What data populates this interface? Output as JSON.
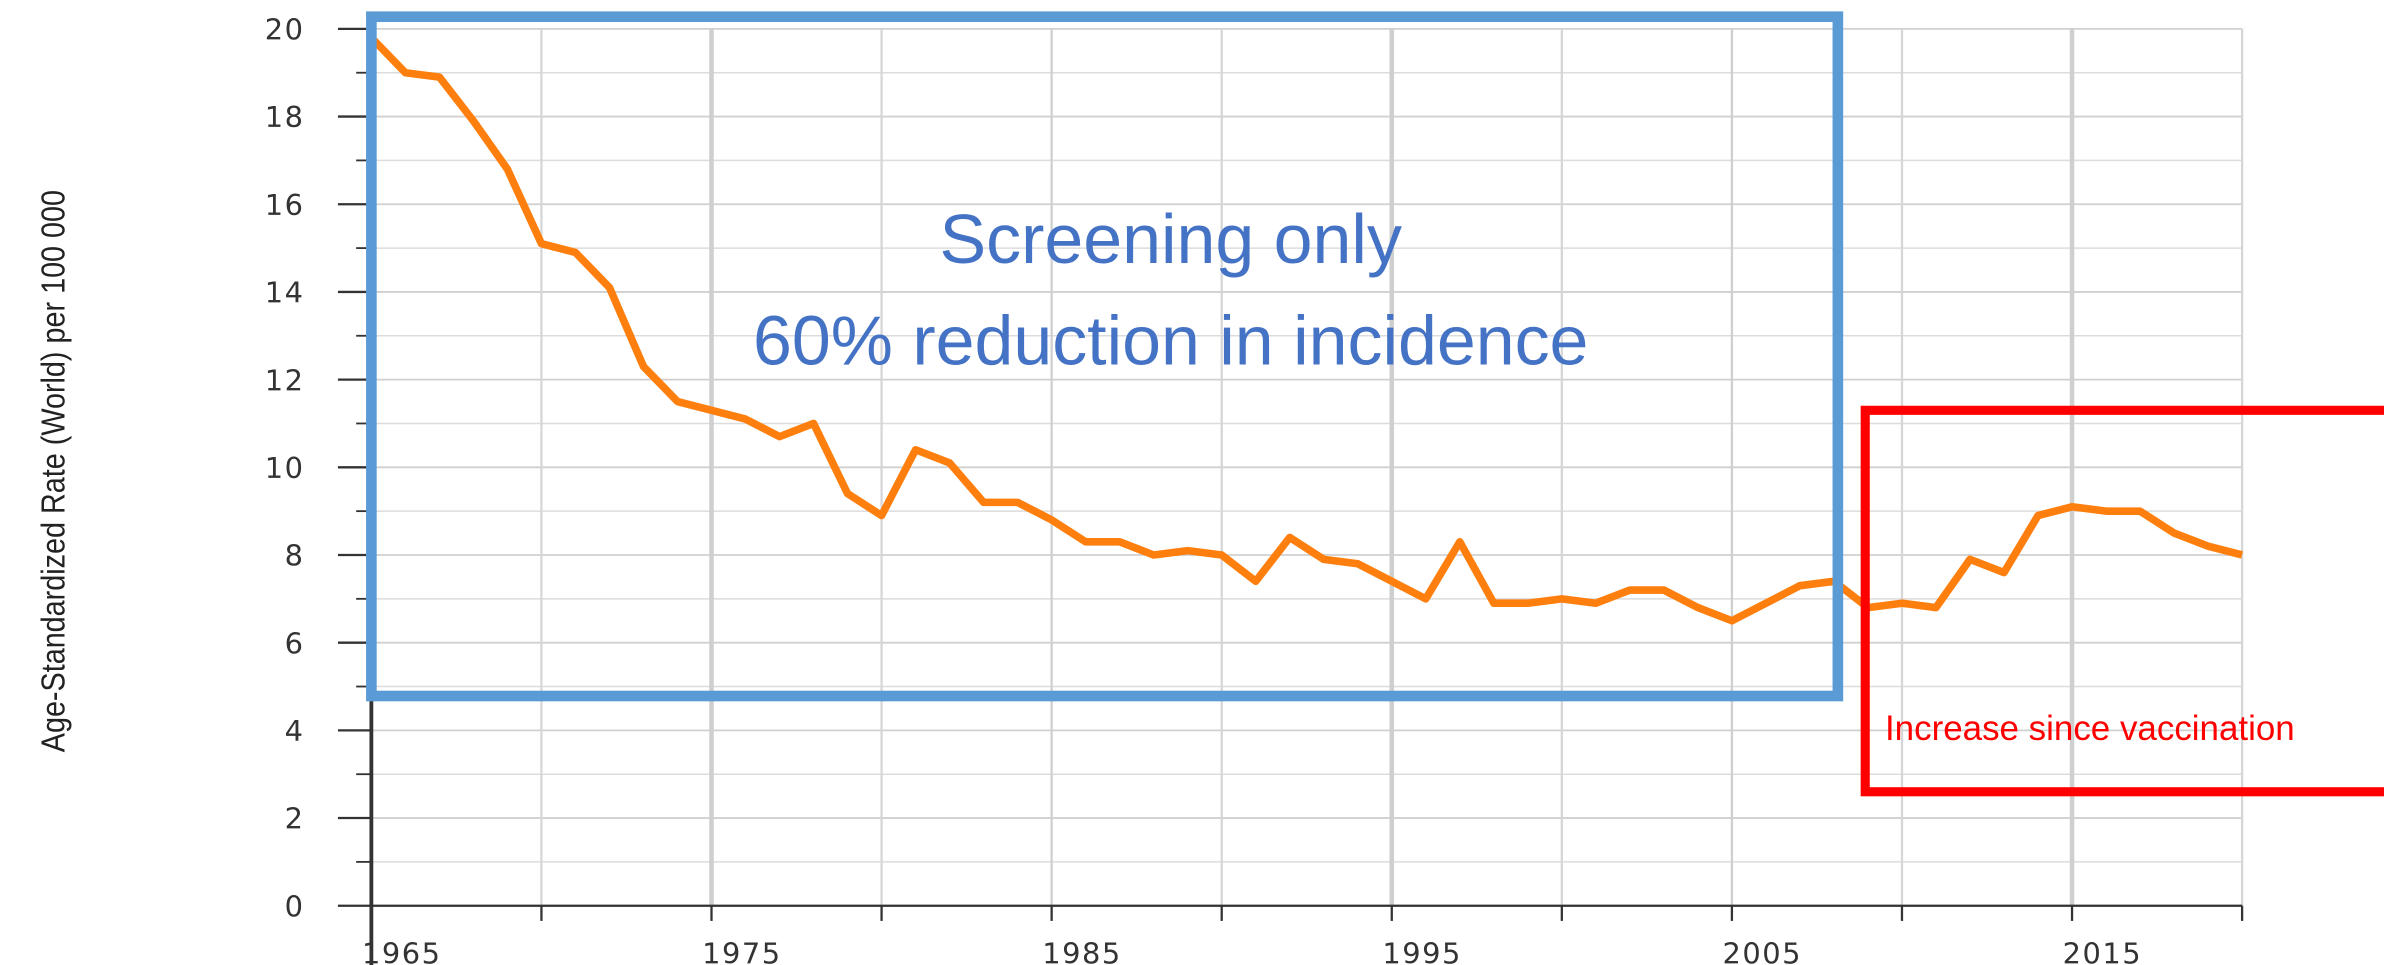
{
  "chart_data": {
    "type": "line",
    "y_label": "Age-Standardized Rate (World) per 100 000",
    "annotations": [
      "Screening only",
      "60% reduction in incidence",
      "Increase since vaccination"
    ],
    "x": [
      1965,
      1966,
      1967,
      1968,
      1969,
      1970,
      1971,
      1972,
      1973,
      1974,
      1975,
      1976,
      1977,
      1978,
      1979,
      1980,
      1981,
      1982,
      1983,
      1984,
      1985,
      1986,
      1987,
      1988,
      1989,
      1990,
      1991,
      1992,
      1993,
      1994,
      1995,
      1996,
      1997,
      1998,
      1999,
      2000,
      2001,
      2002,
      2003,
      2004,
      2005,
      2006,
      2007,
      2008,
      2009,
      2010,
      2011,
      2012,
      2013,
      2014,
      2015,
      2016,
      2017,
      2018,
      2019,
      2020
    ],
    "series": [
      {
        "color": "#ff7f0e",
        "values": [
          19.8,
          19.0,
          18.9,
          17.9,
          16.8,
          15.1,
          14.9,
          14.1,
          12.3,
          11.5,
          11.3,
          11.1,
          10.7,
          11.0,
          9.4,
          8.9,
          10.4,
          10.1,
          9.2,
          9.2,
          8.8,
          8.3,
          8.3,
          8.0,
          8.1,
          8.0,
          7.4,
          8.4,
          7.9,
          7.8,
          7.4,
          7.0,
          8.3,
          6.9,
          6.9,
          7.0,
          6.9,
          7.2,
          7.2,
          6.8,
          6.5,
          6.9,
          7.3,
          7.4,
          6.8,
          6.9,
          6.8,
          7.9,
          7.6,
          8.9,
          9.1,
          9.0,
          9.0,
          8.5,
          8.2,
          8.0
        ]
      }
    ],
    "xlim": [
      1965,
      2020
    ],
    "xticks": [
      1965,
      1975,
      1985,
      1995,
      2005,
      2015
    ],
    "ylim": [
      0,
      20
    ],
    "yticks": [
      0,
      2,
      4,
      6,
      8,
      10,
      12,
      14,
      16,
      18,
      20
    ],
    "grid": true
  }
}
